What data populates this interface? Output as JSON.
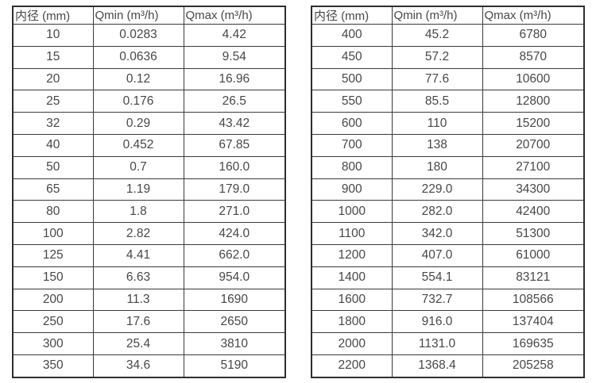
{
  "page": {
    "background_color": "#ffffff",
    "text_color": "#474747",
    "border_color": "#333333"
  },
  "chart_data": [
    {
      "type": "table",
      "name": "flow-rate-table-small-diameters",
      "columns": [
        "内径 (mm)",
        "Qmin (m³/h)",
        "Qmax (m³/h)"
      ],
      "rows": [
        [
          "10",
          "0.0283",
          "4.42"
        ],
        [
          "15",
          "0.0636",
          "9.54"
        ],
        [
          "20",
          "0.12",
          "16.96"
        ],
        [
          "25",
          "0.176",
          "26.5"
        ],
        [
          "32",
          "0.29",
          "43.42"
        ],
        [
          "40",
          "0.452",
          "67.85"
        ],
        [
          "50",
          "0.7",
          "160.0"
        ],
        [
          "65",
          "1.19",
          "179.0"
        ],
        [
          "80",
          "1.8",
          "271.0"
        ],
        [
          "100",
          "2.82",
          "424.0"
        ],
        [
          "125",
          "4.41",
          "662.0"
        ],
        [
          "150",
          "6.63",
          "954.0"
        ],
        [
          "200",
          "11.3",
          "1690"
        ],
        [
          "250",
          "17.6",
          "2650"
        ],
        [
          "300",
          "25.4",
          "3810"
        ],
        [
          "350",
          "34.6",
          "5190"
        ]
      ]
    },
    {
      "type": "table",
      "name": "flow-rate-table-large-diameters",
      "columns": [
        "内径 (mm)",
        "Qmin (m³/h)",
        "Qmax (m³/h)"
      ],
      "rows": [
        [
          "400",
          "45.2",
          "6780"
        ],
        [
          "450",
          "57.2",
          "8570"
        ],
        [
          "500",
          "77.6",
          "10600"
        ],
        [
          "550",
          "85.5",
          "12800"
        ],
        [
          "600",
          "110",
          "15200"
        ],
        [
          "700",
          "138",
          "20700"
        ],
        [
          "800",
          "180",
          "27100"
        ],
        [
          "900",
          "229.0",
          "34300"
        ],
        [
          "1000",
          "282.0",
          "42400"
        ],
        [
          "1100",
          "342.0",
          "51300"
        ],
        [
          "1200",
          "407.0",
          "61000"
        ],
        [
          "1400",
          "554.1",
          "83121"
        ],
        [
          "1600",
          "732.7",
          "108566"
        ],
        [
          "1800",
          "916.0",
          "137404"
        ],
        [
          "2000",
          "1131.0",
          "169635"
        ],
        [
          "2200",
          "1368.4",
          "205258"
        ]
      ]
    }
  ]
}
